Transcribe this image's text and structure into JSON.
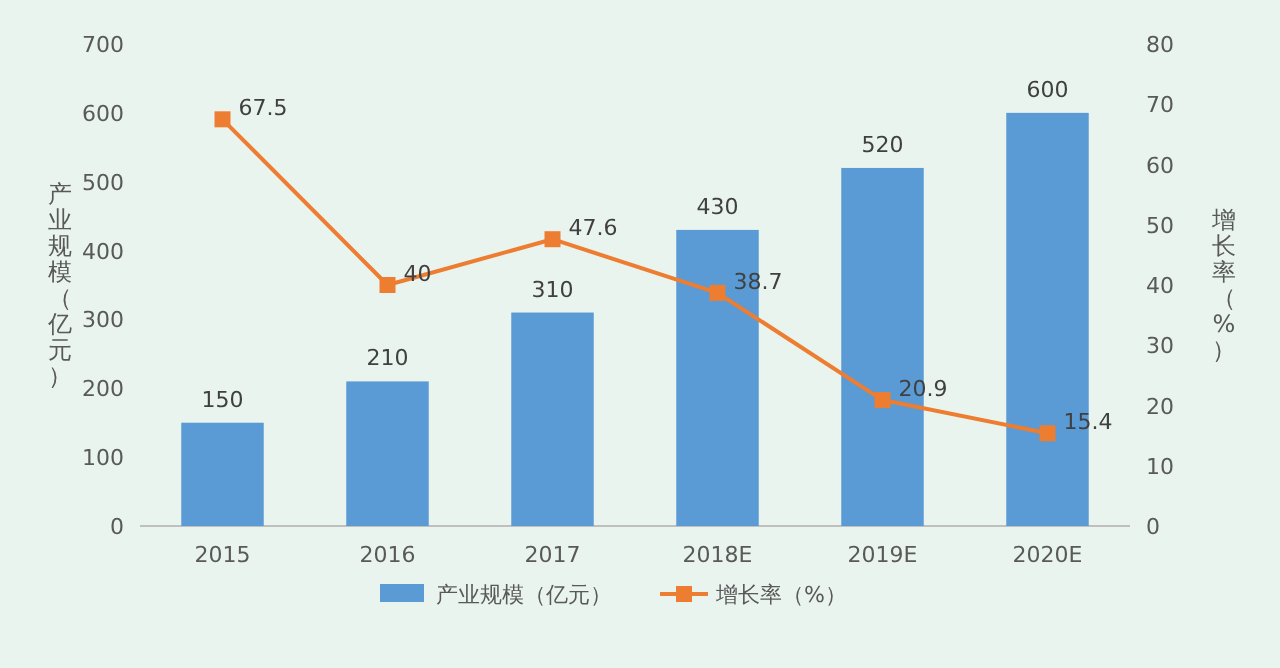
{
  "chart_data": {
    "type": "bar",
    "categories": [
      "2015",
      "2016",
      "2017",
      "2018E",
      "2019E",
      "2020E"
    ],
    "series": [
      {
        "name": "产业规模（亿元）",
        "color": "#5b9bd5",
        "values": [
          150,
          210,
          310,
          430,
          520,
          600
        ]
      },
      {
        "name": "增长率（%）",
        "type": "line",
        "axis": "y2",
        "color": "#ed7d31",
        "marker": "square",
        "values": [
          67.5,
          40,
          47.6,
          38.7,
          20.9,
          15.4
        ]
      }
    ],
    "ylabel": "产业规模（亿元）",
    "y2label": "增长率（%）",
    "ylim": [
      0,
      700
    ],
    "yticks": [
      0,
      100,
      200,
      300,
      400,
      500,
      600,
      700
    ],
    "y2lim": [
      0,
      80
    ],
    "y2ticks": [
      0,
      10,
      20,
      30,
      40,
      50,
      60,
      70,
      80
    ],
    "data_labels": true,
    "legend": "bottom"
  }
}
